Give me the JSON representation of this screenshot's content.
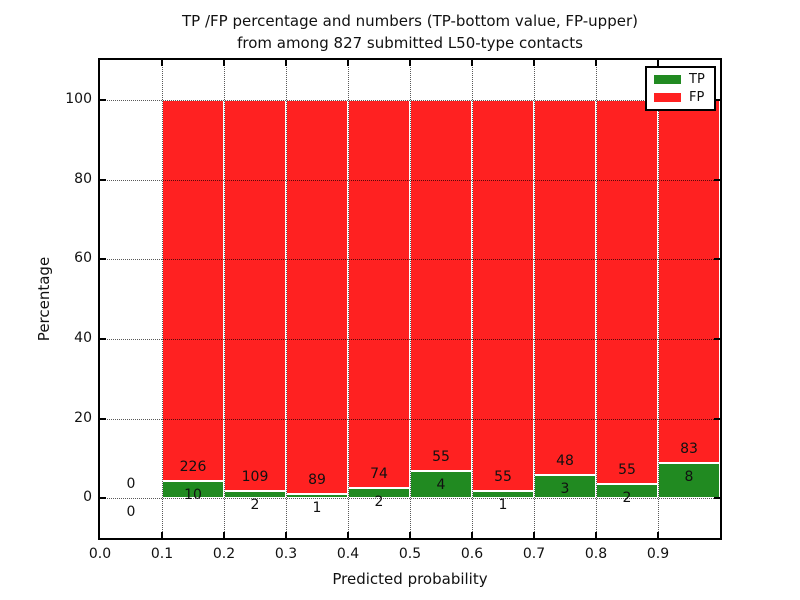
{
  "chart_data": {
    "type": "bar",
    "variant": "stacked-percentage",
    "title_line1": "TP /FP percentage and numbers (TP-bottom value, FP-upper)",
    "title_line2": "from among 827 submitted L50-type contacts",
    "xlabel": "Predicted probability",
    "ylabel": "Percentage",
    "xlim": [
      0.0,
      1.0
    ],
    "ylim": [
      -10,
      110
    ],
    "x_tick_values": [
      0,
      0.1,
      0.2,
      0.3,
      0.4,
      0.5,
      0.6,
      0.7,
      0.8,
      0.9
    ],
    "x_tick_labels": [
      "0.0",
      "0.1",
      "0.2",
      "0.3",
      "0.4",
      "0.5",
      "0.6",
      "0.7",
      "0.8",
      "0.9"
    ],
    "y_tick_values": [
      0,
      20,
      40,
      60,
      80,
      100
    ],
    "y_tick_labels": [
      "0",
      "20",
      "40",
      "60",
      "80",
      "100"
    ],
    "grid_style": "dotted",
    "legend": {
      "position": "upper-right",
      "entries": [
        {
          "label": "TP",
          "color": "#218a21"
        },
        {
          "label": "FP",
          "color": "#ff2121"
        }
      ]
    },
    "colors": {
      "tp": "#218a21",
      "fp": "#ff2121",
      "bar_edge": "#ffffff",
      "text": "#111111"
    },
    "total_submitted": 827,
    "bin_edges": [
      0.0,
      0.1,
      0.2,
      0.3,
      0.4,
      0.5,
      0.6,
      0.7,
      0.8,
      0.9,
      1.0
    ],
    "bins": [
      {
        "tp": 0,
        "fp": 0
      },
      {
        "tp": 10,
        "fp": 226
      },
      {
        "tp": 2,
        "fp": 109
      },
      {
        "tp": 1,
        "fp": 89
      },
      {
        "tp": 2,
        "fp": 74
      },
      {
        "tp": 4,
        "fp": 55
      },
      {
        "tp": 1,
        "fp": 55
      },
      {
        "tp": 3,
        "fp": 48
      },
      {
        "tp": 2,
        "fp": 55
      },
      {
        "tp": 8,
        "fp": 83
      }
    ]
  }
}
